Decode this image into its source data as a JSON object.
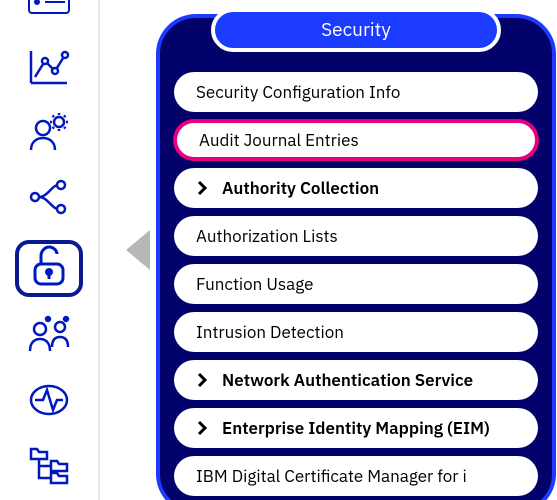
{
  "colors": {
    "icon": "#0019bf",
    "panel_bg": "#02026a",
    "panel_border": "#1b3bff",
    "header_bg": "#1b3bff",
    "header_text": "#ffffff",
    "pill_bg": "#ffffff",
    "pill_text": "#000000",
    "highlight_border": "#e6007e",
    "sidebar_border": "#e6e6e6",
    "active_border": "#091a8f"
  },
  "sidebar": {
    "items": [
      {
        "name": "server-icon",
        "active": false
      },
      {
        "name": "chart-icon",
        "active": false
      },
      {
        "name": "user-gear-icon",
        "active": false
      },
      {
        "name": "network-icon",
        "active": false
      },
      {
        "name": "lock-icon",
        "active": true
      },
      {
        "name": "users-icon",
        "active": false
      },
      {
        "name": "activity-icon",
        "active": false
      },
      {
        "name": "folder-tree-icon",
        "active": false
      }
    ]
  },
  "panel": {
    "title": "Security",
    "items": [
      {
        "label": "Security Configuration Info",
        "expandable": false,
        "highlight": false
      },
      {
        "label": "Audit Journal Entries",
        "expandable": false,
        "highlight": true
      },
      {
        "label": "Authority Collection",
        "expandable": true,
        "highlight": false
      },
      {
        "label": "Authorization Lists",
        "expandable": false,
        "highlight": false
      },
      {
        "label": "Function Usage",
        "expandable": false,
        "highlight": false
      },
      {
        "label": "Intrusion Detection",
        "expandable": false,
        "highlight": false
      },
      {
        "label": "Network Authentication Service",
        "expandable": true,
        "highlight": false
      },
      {
        "label": "Enterprise Identity Mapping (EIM)",
        "expandable": true,
        "highlight": false
      },
      {
        "label": "IBM Digital Certificate Manager for i",
        "expandable": false,
        "highlight": false
      }
    ]
  }
}
